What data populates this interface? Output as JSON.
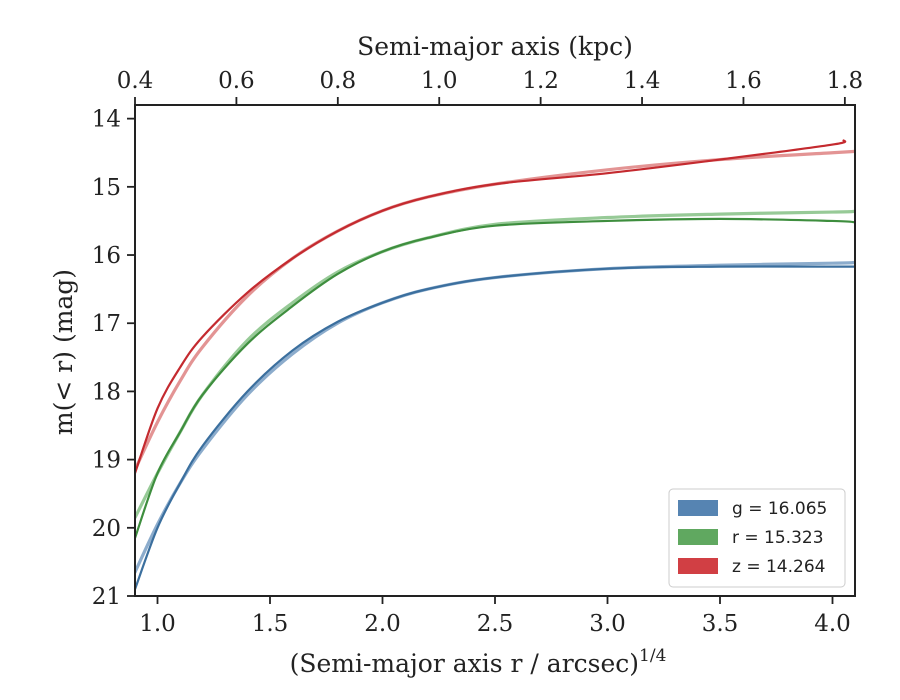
{
  "chart_data": {
    "type": "line",
    "title": "",
    "xlabel": "(Semi-major axis r / arcsec)",
    "xlabel_exponent": "1/4",
    "ylabel": "m(< r) (mag)",
    "top_xlabel": "Semi-major axis (kpc)",
    "xlim": [
      0.9,
      4.1
    ],
    "ylim": [
      21.0,
      13.8
    ],
    "top_xlim": [
      0.4,
      1.82
    ],
    "x_ticks": [
      1.0,
      1.5,
      2.0,
      2.5,
      3.0,
      3.5,
      4.0
    ],
    "x_tick_labels": [
      "1.0",
      "1.5",
      "2.0",
      "2.5",
      "3.0",
      "3.5",
      "4.0"
    ],
    "y_ticks": [
      14,
      15,
      16,
      17,
      18,
      19,
      20,
      21
    ],
    "y_tick_labels": [
      "14",
      "15",
      "16",
      "17",
      "18",
      "19",
      "20",
      "21"
    ],
    "top_ticks": [
      0.4,
      0.6,
      0.8,
      1.0,
      1.2,
      1.4,
      1.6,
      1.8
    ],
    "top_tick_labels": [
      "0.4",
      "0.6",
      "0.8",
      "1.0",
      "1.2",
      "1.4",
      "1.6",
      "1.8"
    ],
    "grid": false,
    "legend_position": "bottom-right",
    "legend": [
      {
        "band": "g",
        "label": "g = 16.065",
        "color": "#4477aa"
      },
      {
        "band": "r",
        "label": "r = 15.323",
        "color": "#4f9e4f"
      },
      {
        "band": "z",
        "label": "z = 14.264",
        "color": "#cc2a30"
      }
    ],
    "series": [
      {
        "name": "g data",
        "band": "g",
        "kind": "data",
        "color": "#3b6f9e",
        "x": [
          0.9,
          1.0,
          1.1,
          1.2,
          1.4,
          1.6,
          1.8,
          2.0,
          2.2,
          2.5,
          3.0,
          3.5,
          4.0,
          4.1
        ],
        "y": [
          20.9,
          20.0,
          19.35,
          18.8,
          18.0,
          17.4,
          16.98,
          16.7,
          16.5,
          16.33,
          16.2,
          16.17,
          16.17,
          16.17
        ]
      },
      {
        "name": "g model",
        "band": "g",
        "kind": "model",
        "color": "#7fa3c7",
        "x": [
          0.9,
          1.0,
          1.1,
          1.2,
          1.4,
          1.6,
          1.8,
          2.0,
          2.2,
          2.5,
          3.0,
          3.5,
          4.0,
          4.1
        ],
        "y": [
          20.65,
          19.95,
          19.35,
          18.85,
          18.05,
          17.45,
          17.0,
          16.7,
          16.5,
          16.33,
          16.2,
          16.15,
          16.12,
          16.11
        ]
      },
      {
        "name": "r data",
        "band": "r",
        "kind": "data",
        "color": "#3e8e3e",
        "x": [
          0.9,
          1.0,
          1.1,
          1.2,
          1.4,
          1.6,
          1.8,
          2.0,
          2.2,
          2.5,
          3.0,
          3.5,
          4.0,
          4.1
        ],
        "y": [
          20.15,
          19.2,
          18.6,
          18.05,
          17.3,
          16.75,
          16.28,
          15.95,
          15.75,
          15.57,
          15.5,
          15.47,
          15.5,
          15.52
        ]
      },
      {
        "name": "r model",
        "band": "r",
        "kind": "model",
        "color": "#8cc48c",
        "x": [
          0.9,
          1.0,
          1.1,
          1.2,
          1.4,
          1.6,
          1.8,
          2.0,
          2.2,
          2.5,
          3.0,
          3.5,
          4.0,
          4.1
        ],
        "y": [
          19.85,
          19.2,
          18.6,
          18.05,
          17.25,
          16.7,
          16.25,
          15.95,
          15.75,
          15.55,
          15.45,
          15.4,
          15.37,
          15.36
        ]
      },
      {
        "name": "z data",
        "band": "z",
        "kind": "data",
        "color": "#c42a2f",
        "x": [
          0.9,
          1.0,
          1.1,
          1.2,
          1.4,
          1.6,
          1.8,
          2.0,
          2.2,
          2.5,
          3.0,
          3.5,
          4.0,
          4.05
        ],
        "y": [
          19.2,
          18.25,
          17.65,
          17.2,
          16.55,
          16.05,
          15.65,
          15.35,
          15.15,
          14.96,
          14.8,
          14.6,
          14.38,
          14.32
        ]
      },
      {
        "name": "z model",
        "band": "z",
        "kind": "model",
        "color": "#e08888",
        "x": [
          0.9,
          1.0,
          1.1,
          1.2,
          1.4,
          1.6,
          1.8,
          2.0,
          2.2,
          2.5,
          3.0,
          3.5,
          4.0,
          4.1
        ],
        "y": [
          19.15,
          18.45,
          17.85,
          17.35,
          16.6,
          16.05,
          15.65,
          15.35,
          15.15,
          14.96,
          14.75,
          14.6,
          14.5,
          14.48
        ]
      }
    ]
  }
}
